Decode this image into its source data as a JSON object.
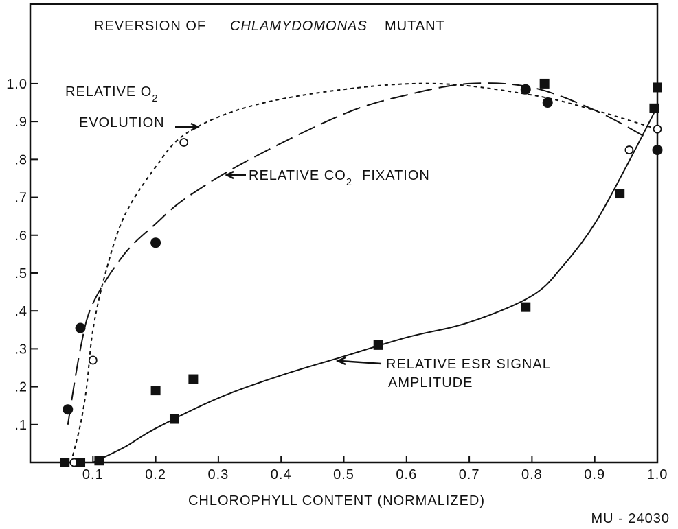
{
  "chart_data": {
    "type": "scatter",
    "title": [
      "REVERSION OF",
      "CHLAMYDOMONAS",
      "MUTANT"
    ],
    "x_label": "CHLOROPHYLL CONTENT (NORMALIZED)",
    "code": "MU - 24030",
    "annotations": [
      {
        "text": "RELATIVE O",
        "sub": "2"
      },
      {
        "text": "EVOLUTION"
      },
      {
        "text": "RELATIVE CO",
        "sub": "2",
        "after": "FIXATION"
      },
      {
        "text": "RELATIVE ESR SIGNAL"
      },
      {
        "text": "AMPLITUDE"
      }
    ],
    "xlim": [
      0,
      1
    ],
    "ylim": [
      0,
      1.21
    ],
    "xticks": [
      0.1,
      0.2,
      0.3,
      0.4,
      0.5,
      0.6,
      0.7,
      0.8,
      0.9,
      {
        "value": 1,
        "label": "1.0"
      }
    ],
    "yticks": [
      {
        "value": 0.1,
        "label": ".1"
      },
      {
        "value": 0.2,
        "label": ".2"
      },
      {
        "value": 0.3,
        "label": ".3"
      },
      {
        "value": 0.4,
        "label": ".4"
      },
      {
        "value": 0.5,
        "label": ".5"
      },
      {
        "value": 0.6,
        "label": ".6"
      },
      {
        "value": 0.7,
        "label": ".7"
      },
      {
        "value": 0.8,
        "label": ".8"
      },
      {
        "value": 0.9,
        "label": ".9"
      },
      {
        "value": 1,
        "label": "1.0"
      }
    ],
    "series": [
      {
        "marker": "open-circle",
        "line": "short-dash",
        "color": "#111",
        "x": [
          0.07,
          0.1,
          0.245,
          0.955,
          1.0
        ],
        "values": [
          0.0,
          0.27,
          0.845,
          0.825,
          0.88
        ],
        "curve_x": [
          0.065,
          0.08,
          0.09,
          0.1,
          0.12,
          0.15,
          0.2,
          0.25,
          0.35,
          0.5,
          0.65,
          0.8,
          0.9,
          1.0
        ],
        "curve_y": [
          0.0,
          0.1,
          0.2,
          0.35,
          0.5,
          0.65,
          0.78,
          0.87,
          0.94,
          0.985,
          1.0,
          0.97,
          0.93,
          0.88
        ]
      },
      {
        "marker": "filled-circle",
        "line": "long-dash",
        "color": "#111",
        "x": [
          0.06,
          0.08,
          0.2,
          0.79,
          0.825,
          1.0
        ],
        "values": [
          0.14,
          0.355,
          0.58,
          0.985,
          0.95,
          0.825
        ],
        "curve_x": [
          0.06,
          0.08,
          0.1,
          0.15,
          0.2,
          0.25,
          0.35,
          0.5,
          0.6,
          0.7,
          0.8,
          0.9,
          0.98
        ],
        "curve_y": [
          0.1,
          0.3,
          0.42,
          0.55,
          0.63,
          0.7,
          0.8,
          0.92,
          0.97,
          1.0,
          0.99,
          0.93,
          0.86
        ]
      },
      {
        "marker": "square",
        "line": "solid",
        "color": "#111",
        "x": [
          0.055,
          0.08,
          0.11,
          0.2,
          0.23,
          0.26,
          0.555,
          0.79,
          0.82,
          0.94,
          0.995,
          1.0
        ],
        "values": [
          0.0,
          0.0,
          0.005,
          0.19,
          0.115,
          0.22,
          0.31,
          0.41,
          1.0,
          0.71,
          0.935,
          0.99
        ],
        "curve_x": [
          0.1,
          0.15,
          0.2,
          0.3,
          0.4,
          0.5,
          0.6,
          0.7,
          0.8,
          0.85,
          0.9,
          0.95,
          1.0
        ],
        "curve_y": [
          0.0,
          0.04,
          0.09,
          0.17,
          0.23,
          0.28,
          0.33,
          0.37,
          0.44,
          0.52,
          0.63,
          0.78,
          0.94
        ]
      }
    ]
  }
}
